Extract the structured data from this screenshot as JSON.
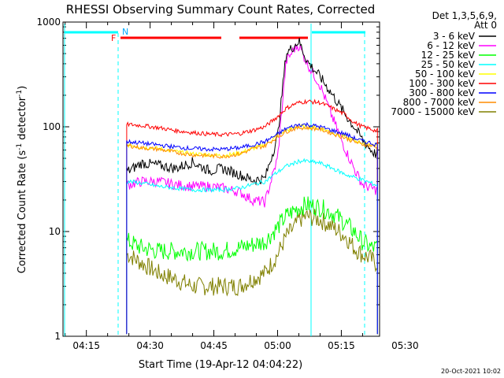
{
  "title": "RHESSI Observing Summary Count Rates, Corrected",
  "detector_info": [
    "Det 1,3,5,6,9,",
    "Att 0"
  ],
  "footer_date": "20-Oct-2021 10:02",
  "flag_labels": {
    "F": "F",
    "N": "N"
  },
  "chart_data": {
    "type": "line",
    "title": "RHESSI Observing Summary Count Rates, Corrected",
    "xlabel": "Start Time (19-Apr-12 04:04:22)",
    "ylabel": "Corrected Count Rate (s⁻¹ detector⁻¹)",
    "ylabel_main": "Corrected Count Rate (s",
    "ylabel_sup1": "-1",
    "ylabel_mid": " detector",
    "ylabel_sup2": "-1",
    "ylabel_end": ")",
    "y_scale": "log",
    "ylim": [
      1,
      1000
    ],
    "xlim_minutes": [
      9.5,
      84
    ],
    "x_ticks": [
      {
        "label": "04:15",
        "minute": 15
      },
      {
        "label": "04:30",
        "minute": 30
      },
      {
        "label": "04:45",
        "minute": 45
      },
      {
        "label": "05:00",
        "minute": 60
      },
      {
        "label": "05:15",
        "minute": 75
      },
      {
        "label": "05:30",
        "minute": 90
      }
    ],
    "y_ticks": [
      {
        "label": "1",
        "value": 1
      },
      {
        "label": "10",
        "value": 10
      },
      {
        "label": "100",
        "value": 100
      },
      {
        "label": "1000",
        "value": 1000
      }
    ],
    "legend_position": "right",
    "series": [
      {
        "name": "3 - 6 keV",
        "color": "#000000",
        "x": [
          25,
          28,
          32,
          36,
          40,
          44,
          47,
          51,
          54,
          57,
          60,
          62,
          64,
          65,
          67,
          70,
          73,
          76,
          78,
          80,
          82,
          83
        ],
        "values": [
          38,
          45,
          43,
          40,
          46,
          38,
          40,
          35,
          31,
          32,
          80,
          500,
          600,
          660,
          420,
          300,
          200,
          130,
          100,
          75,
          60,
          55
        ]
      },
      {
        "name": "6 - 12 keV",
        "color": "#ff00ff",
        "x": [
          25,
          28,
          32,
          36,
          40,
          44,
          47,
          51,
          54,
          57,
          60,
          62,
          64,
          65,
          67,
          70,
          73,
          76,
          78,
          80,
          82,
          83
        ],
        "values": [
          28,
          30,
          30,
          28,
          27,
          27,
          26,
          24,
          20,
          19,
          50,
          420,
          560,
          600,
          400,
          250,
          120,
          60,
          40,
          28,
          26,
          25
        ]
      },
      {
        "name": "12 - 25 keV",
        "color": "#00ff00",
        "x": [
          25,
          28,
          32,
          36,
          40,
          44,
          47,
          51,
          54,
          57,
          60,
          62,
          64,
          65,
          67,
          70,
          73,
          76,
          78,
          80,
          82,
          83
        ],
        "values": [
          8,
          7,
          6.5,
          6.5,
          6.5,
          6.5,
          6.5,
          7,
          7.5,
          8,
          11,
          14,
          16,
          17,
          18,
          17,
          15,
          12,
          10,
          8,
          7,
          7
        ]
      },
      {
        "name": "25 - 50 keV",
        "color": "#00ffff",
        "x": [
          25,
          28,
          32,
          36,
          40,
          44,
          47,
          51,
          54,
          57,
          60,
          62,
          64,
          65,
          67,
          70,
          73,
          76,
          78,
          80,
          82,
          83
        ],
        "values": [
          30,
          29,
          27,
          26,
          25,
          25,
          25,
          26,
          28,
          30,
          37,
          42,
          45,
          47,
          47,
          45,
          40,
          35,
          33,
          31,
          29,
          28
        ]
      },
      {
        "name": "50 - 100 keV",
        "color": "#ffff00",
        "x": [
          25,
          28,
          32,
          36,
          40,
          44,
          47,
          51,
          54,
          57,
          60,
          62,
          64,
          65,
          67,
          70,
          73,
          76,
          78,
          80,
          82,
          83
        ],
        "values": [
          67,
          64,
          62,
          58,
          55,
          54,
          53,
          56,
          62,
          67,
          82,
          92,
          98,
          100,
          100,
          97,
          88,
          80,
          74,
          70,
          68,
          66
        ]
      },
      {
        "name": "100 - 300 keV",
        "color": "#ff0000",
        "x": [
          25,
          28,
          32,
          36,
          40,
          44,
          47,
          51,
          54,
          57,
          60,
          62,
          64,
          65,
          67,
          70,
          73,
          76,
          78,
          80,
          82,
          83
        ],
        "values": [
          105,
          103,
          98,
          92,
          88,
          85,
          84,
          86,
          92,
          100,
          125,
          150,
          165,
          170,
          175,
          170,
          150,
          130,
          110,
          100,
          95,
          92
        ]
      },
      {
        "name": "300 - 800 keV",
        "color": "#0000ff",
        "x": [
          25,
          28,
          32,
          36,
          40,
          44,
          47,
          51,
          54,
          57,
          60,
          62,
          64,
          65,
          67,
          70,
          73,
          76,
          78,
          80,
          82,
          83
        ],
        "values": [
          72,
          70,
          67,
          64,
          62,
          61,
          61,
          63,
          67,
          72,
          85,
          96,
          102,
          105,
          105,
          100,
          92,
          85,
          78,
          73,
          70,
          68
        ]
      },
      {
        "name": "800 - 7000 keV",
        "color": "#ff8c00",
        "x": [
          25,
          28,
          32,
          36,
          40,
          44,
          47,
          51,
          54,
          57,
          60,
          62,
          64,
          65,
          67,
          70,
          73,
          76,
          78,
          80,
          82,
          83
        ],
        "values": [
          66,
          63,
          61,
          57,
          54,
          53,
          52,
          55,
          61,
          66,
          80,
          90,
          96,
          98,
          98,
          95,
          86,
          78,
          72,
          68,
          66,
          64
        ]
      },
      {
        "name": "7000 - 15000 keV",
        "color": "#808000",
        "x": [
          25,
          28,
          32,
          36,
          40,
          44,
          47,
          51,
          54,
          57,
          60,
          62,
          64,
          65,
          67,
          70,
          73,
          76,
          78,
          80,
          82,
          83
        ],
        "values": [
          6,
          5,
          4,
          3.5,
          3,
          3,
          3,
          3,
          3.5,
          4,
          6,
          9,
          11,
          13,
          14,
          13,
          11,
          9,
          7,
          6,
          5.5,
          5
        ]
      }
    ]
  }
}
